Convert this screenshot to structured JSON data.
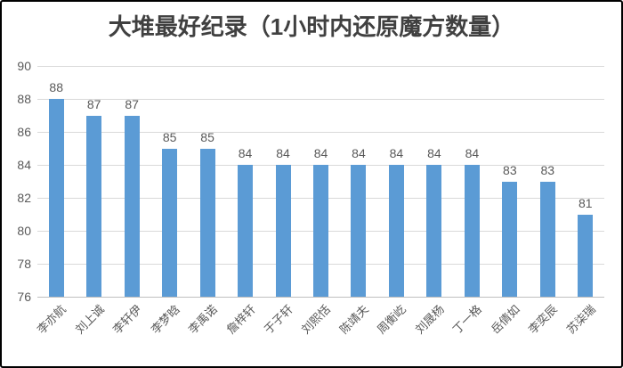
{
  "chart_data": {
    "type": "bar",
    "title": "大堆最好纪录（1小时内还原魔方数量）",
    "categories": [
      "李亦航",
      "刘上诚",
      "李轩伊",
      "李梦晗",
      "李禹诺",
      "詹梓轩",
      "于子轩",
      "刘熙恬",
      "陈靖夫",
      "周衡屹",
      "刘晟杨",
      "丁一格",
      "岳倩如",
      "李奕辰",
      "苏柒瑞"
    ],
    "values": [
      88,
      87,
      87,
      85,
      85,
      84,
      84,
      84,
      84,
      84,
      84,
      84,
      83,
      83,
      81
    ],
    "xlabel": "",
    "ylabel": "",
    "ylim": [
      76,
      90
    ],
    "yticks": [
      76,
      78,
      80,
      82,
      84,
      86,
      88,
      90
    ],
    "grid": true,
    "legend": false,
    "data_labels": true,
    "colors": {
      "bar": "#5B9BD5",
      "title_text": "#404040",
      "label_text": "#595959",
      "gridline": "#D9D9D9",
      "axis_line": "#BFBFBF",
      "background": "#FFFFFF",
      "frame_border": "#000000"
    }
  }
}
